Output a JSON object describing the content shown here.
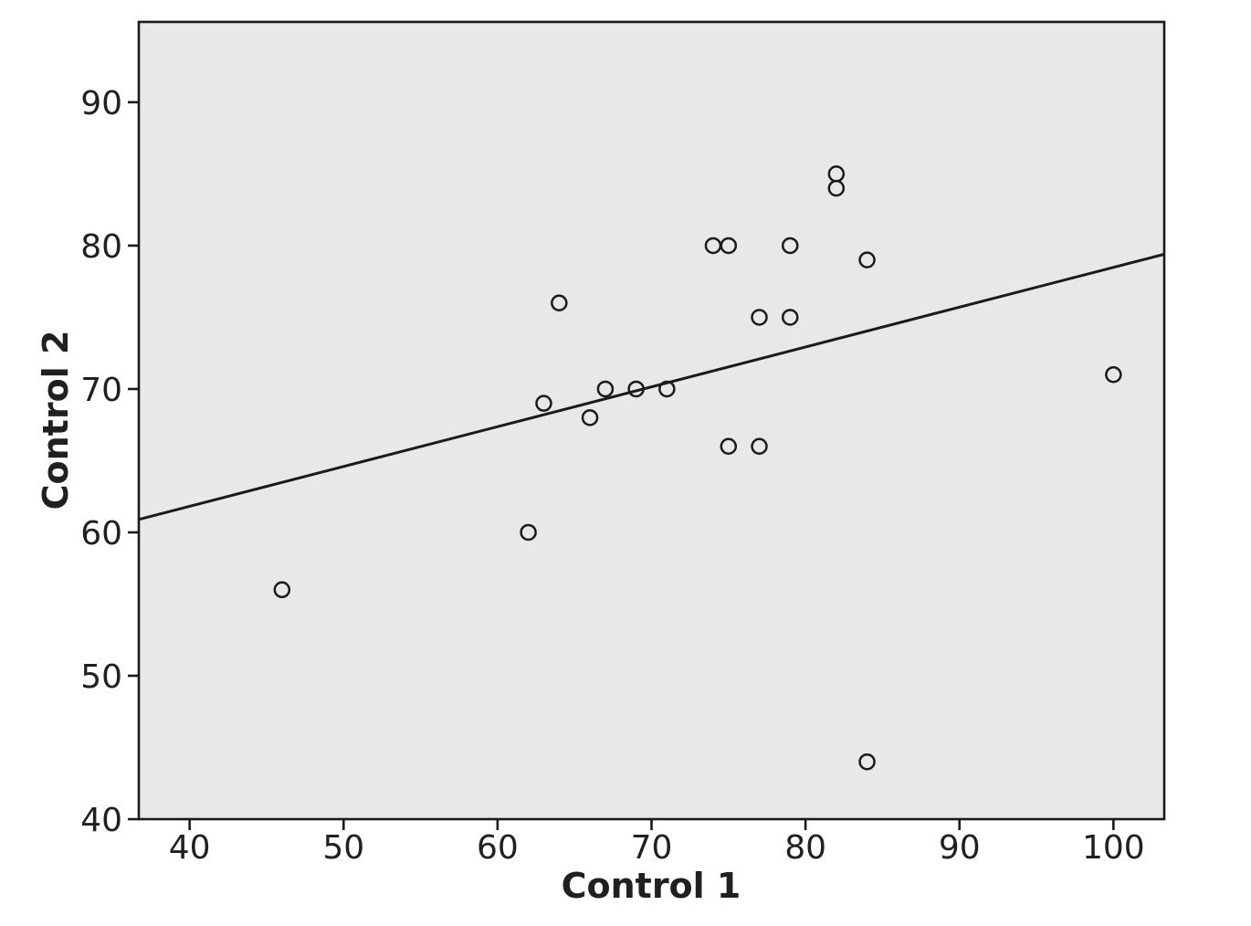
{
  "colors": {
    "background": "#ffffff",
    "plot_background": "#e8e8ea",
    "frame": "#1a1a1a",
    "tick": "#1a1a1a",
    "marker_stroke": "#1a1a1a",
    "trend_line": "#1a1a1a",
    "text": "#231f20"
  },
  "chart_data": {
    "type": "scatter",
    "title": "",
    "xlabel": "Control 1",
    "ylabel": "Control 2",
    "xlim": [
      36.7,
      103.3
    ],
    "ylim": [
      40,
      95.6
    ],
    "x_ticks": [
      40,
      50,
      60,
      70,
      80,
      90,
      100
    ],
    "y_ticks": [
      40,
      50,
      60,
      70,
      80,
      90
    ],
    "grid": false,
    "legend": false,
    "marker_style": "open-circle",
    "points": [
      {
        "x": 46,
        "y": 56
      },
      {
        "x": 62,
        "y": 60
      },
      {
        "x": 63,
        "y": 69
      },
      {
        "x": 64,
        "y": 76
      },
      {
        "x": 66,
        "y": 68
      },
      {
        "x": 67,
        "y": 70
      },
      {
        "x": 69,
        "y": 70
      },
      {
        "x": 71,
        "y": 70
      },
      {
        "x": 74,
        "y": 80
      },
      {
        "x": 75,
        "y": 80
      },
      {
        "x": 75,
        "y": 66
      },
      {
        "x": 77,
        "y": 66
      },
      {
        "x": 77,
        "y": 75
      },
      {
        "x": 79,
        "y": 75
      },
      {
        "x": 79,
        "y": 80
      },
      {
        "x": 82,
        "y": 84
      },
      {
        "x": 82,
        "y": 85
      },
      {
        "x": 84,
        "y": 44
      },
      {
        "x": 84,
        "y": 79
      },
      {
        "x": 100,
        "y": 71
      }
    ],
    "trend_line": {
      "x1": 36.7,
      "y1": 60.9,
      "x2": 103.3,
      "y2": 79.4
    }
  }
}
